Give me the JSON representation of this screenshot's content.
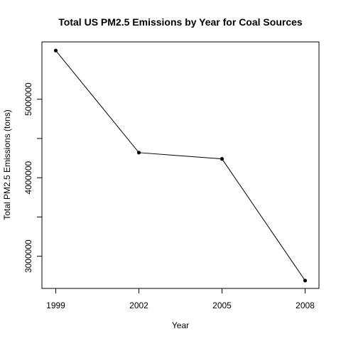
{
  "chart_data": {
    "type": "line",
    "title": "Total US PM2.5 Emissions by Year for Coal Sources",
    "xlabel": "Year",
    "ylabel": "Total PM2.5 Emissions (tons)",
    "x": [
      1999,
      2002,
      2005,
      2008
    ],
    "y": [
      5620000,
      4320000,
      4240000,
      2690000
    ],
    "x_ticks": [
      "1999",
      "2002",
      "2005",
      "2008"
    ],
    "y_ticks": [
      3000000,
      4000000,
      5000000
    ],
    "y_tick_labels": [
      "3000000",
      "4000000",
      "5000000"
    ],
    "xlim": [
      1998.5,
      2008.5
    ],
    "ylim": [
      2590000,
      5730000
    ],
    "markers": true,
    "line_color": "#000000",
    "grid": false
  }
}
